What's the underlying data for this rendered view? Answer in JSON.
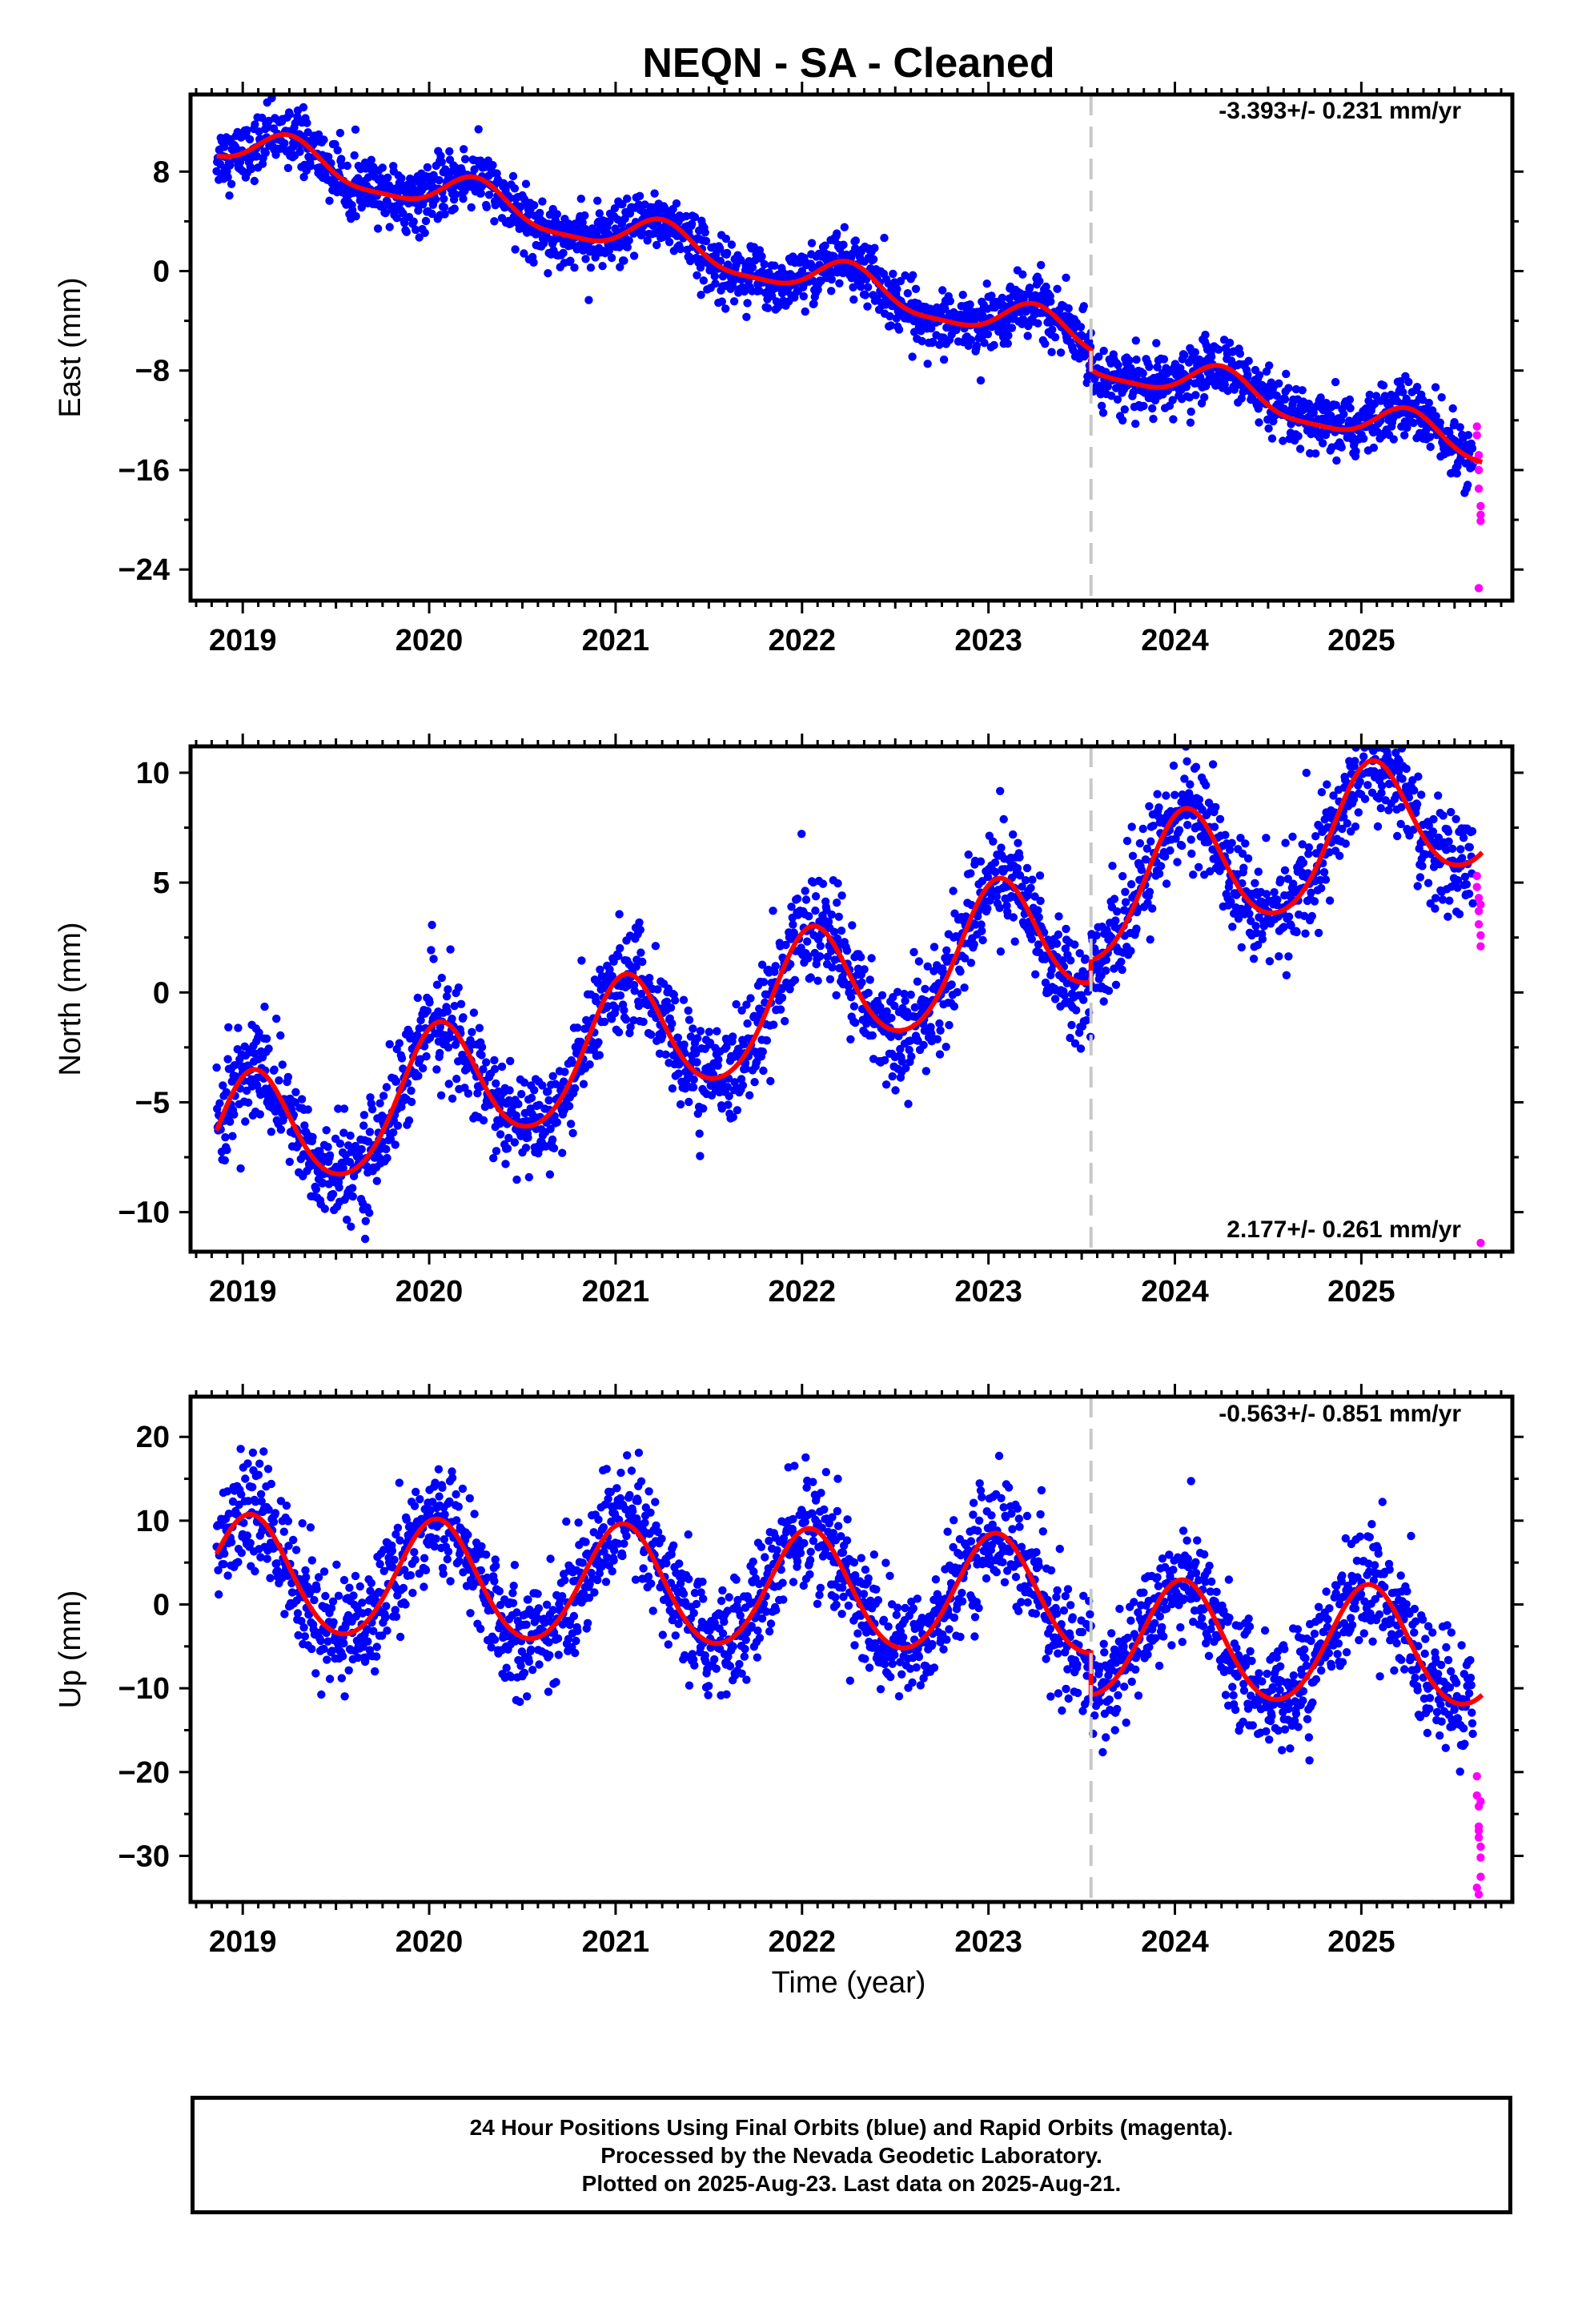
{
  "title": "NEQN  - SA - Cleaned",
  "xlabel": "Time (year)",
  "colors": {
    "final_orbits": "#0000ff",
    "rapid_orbits": "#ff00ff",
    "model": "#ff0000",
    "break_line": "#c8c8c8"
  },
  "footer": {
    "line1": "24 Hour Positions Using Final Orbits (blue) and Rapid Orbits (magenta).",
    "line2": "Processed by the Nevada Geodetic Laboratory.",
    "line3": "Plotted on 2025-Aug-23. Last data on 2025-Aug-21."
  },
  "chart_data": [
    {
      "type": "scatter",
      "ylabel": "East (mm)",
      "rate_label": "-3.393+/- 0.231 mm/yr",
      "xlim": [
        2018.72,
        2025.81
      ],
      "ylim": [
        -26.5,
        14.2
      ],
      "xticks": [
        "2019",
        "2020",
        "2021",
        "2022",
        "2023",
        "2024",
        "2025"
      ],
      "yticks": [
        "8",
        "0",
        "−8",
        "−16",
        "−24"
      ],
      "ytick_values": [
        8,
        0,
        -8,
        -16,
        -24
      ],
      "break_epoch": 2023.55,
      "model": {
        "rate": -3.393,
        "offset_at_2022": -0.3,
        "annual_amp": 1.5,
        "annual_peak": 2019.25,
        "semiannual_amp": 0.4,
        "step_at_break": -1.6,
        "scatter_mm": 1.2
      },
      "rapid_points": {
        "x": [
          2025.62,
          2025.62,
          2025.63,
          2025.63,
          2025.63,
          2025.64,
          2025.64,
          2025.64,
          2025.62,
          2025.63
        ],
        "y": [
          -12.5,
          -13.2,
          -14.8,
          -16.0,
          -17.5,
          -18.9,
          -19.6,
          -20.1,
          -15.2,
          -25.5
        ]
      }
    },
    {
      "type": "scatter",
      "ylabel": "North (mm)",
      "rate_label": "2.177+/- 0.261 mm/yr",
      "xlim": [
        2018.72,
        2025.81
      ],
      "ylim": [
        -11.8,
        11.2
      ],
      "xticks": [
        "2019",
        "2020",
        "2021",
        "2022",
        "2023",
        "2024",
        "2025"
      ],
      "yticks": [
        "10",
        "5",
        "0",
        "−5",
        "−10"
      ],
      "ytick_values": [
        10,
        5,
        0,
        -5,
        -10
      ],
      "break_epoch": 2023.55,
      "model": {
        "rate": 2.177,
        "offset_at_2022": -0.3,
        "annual_amp": 2.9,
        "annual_peak": 2019.05,
        "semiannual_amp": 0.3,
        "step_at_break": 1.0,
        "scatter_mm": 1.2
      },
      "rapid_points": {
        "x": [
          2025.62,
          2025.62,
          2025.63,
          2025.63,
          2025.63,
          2025.64,
          2025.64,
          2025.64,
          2025.64
        ],
        "y": [
          5.3,
          4.8,
          4.3,
          3.7,
          3.1,
          2.6,
          2.1,
          4.0,
          -11.4
        ]
      }
    },
    {
      "type": "scatter",
      "ylabel": "Up (mm)",
      "rate_label": "-0.563+/- 0.851 mm/yr",
      "xlim": [
        2018.72,
        2025.81
      ],
      "ylim": [
        -35.5,
        24.8
      ],
      "xticks": [
        "2019",
        "2020",
        "2021",
        "2022",
        "2023",
        "2024",
        "2025"
      ],
      "yticks": [
        "20",
        "10",
        "0",
        "−10",
        "−20",
        "−30"
      ],
      "ytick_values": [
        20,
        10,
        0,
        -10,
        -20,
        -30
      ],
      "break_epoch": 2023.55,
      "model": {
        "rate": -0.563,
        "offset_at_2022": 1.6,
        "annual_amp": 7.0,
        "annual_peak": 2019.04,
        "semiannual_amp": 0.5,
        "step_at_break": -5.0,
        "scatter_mm": 3.4
      },
      "rapid_points": {
        "x": [
          2025.62,
          2025.62,
          2025.63,
          2025.63,
          2025.63,
          2025.64,
          2025.64,
          2025.64,
          2025.62,
          2025.63,
          2025.64,
          2025.63
        ],
        "y": [
          -20.5,
          -22.8,
          -24.1,
          -26.5,
          -27.8,
          -28.9,
          -30.2,
          -32.5,
          -33.8,
          -34.6,
          -23.5,
          -27.0
        ]
      }
    }
  ]
}
